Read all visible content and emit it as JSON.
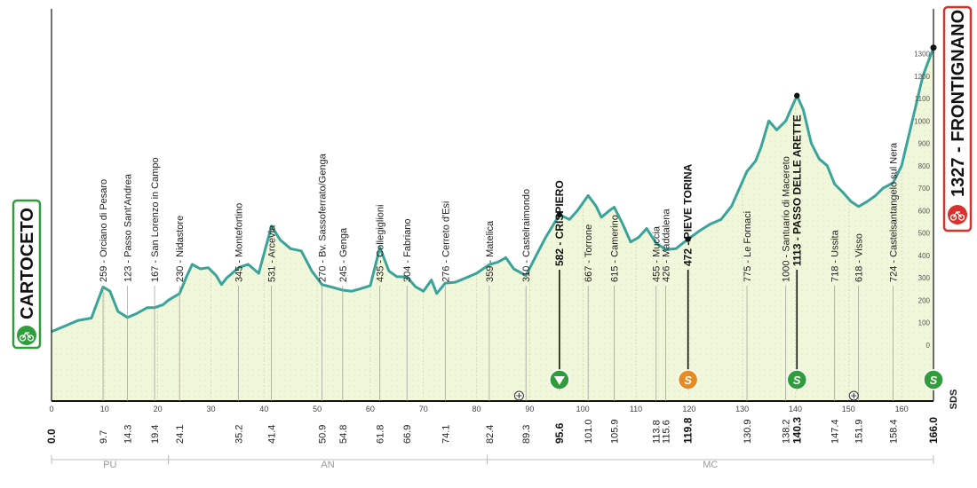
{
  "chart_data": {
    "type": "area",
    "title": "",
    "xlabel": "",
    "ylabel": "",
    "xlim": [
      0,
      166
    ],
    "ylim": [
      -250,
      1500
    ],
    "colors": {
      "line": "#3aa39a",
      "fill": "#f1f7db",
      "start_box": "#2e9d3a",
      "finish_box": "#d9302c",
      "sprint_marker": "#e88a1e",
      "kom_marker": "#2e9d3a",
      "feed_marker": "#2e9d3a"
    },
    "start": {
      "name": "CARTOCETO",
      "km": 0.0
    },
    "finish": {
      "name": "1327 - FRONTIGNANO",
      "km": 166.0,
      "elevation": 1327
    },
    "profile": [
      [
        0,
        60
      ],
      [
        2,
        80
      ],
      [
        5,
        110
      ],
      [
        7.5,
        120
      ],
      [
        9.7,
        259
      ],
      [
        11,
        240
      ],
      [
        12.5,
        150
      ],
      [
        14.3,
        123
      ],
      [
        16,
        140
      ],
      [
        18,
        167
      ],
      [
        19.4,
        167
      ],
      [
        21,
        180
      ],
      [
        22,
        200
      ],
      [
        24.1,
        230
      ],
      [
        25.5,
        310
      ],
      [
        26.5,
        360
      ],
      [
        28,
        340
      ],
      [
        29.5,
        345
      ],
      [
        31,
        310
      ],
      [
        32,
        270
      ],
      [
        33,
        300
      ],
      [
        35.2,
        345
      ],
      [
        37,
        360
      ],
      [
        39,
        320
      ],
      [
        41.4,
        531
      ],
      [
        43,
        470
      ],
      [
        45,
        430
      ],
      [
        47,
        420
      ],
      [
        49,
        330
      ],
      [
        50.9,
        270
      ],
      [
        52.5,
        260
      ],
      [
        54.8,
        245
      ],
      [
        56.5,
        240
      ],
      [
        58,
        250
      ],
      [
        60,
        265
      ],
      [
        61.8,
        435
      ],
      [
        63.5,
        330
      ],
      [
        65,
        305
      ],
      [
        66.9,
        304
      ],
      [
        68.5,
        260
      ],
      [
        70,
        240
      ],
      [
        71.5,
        290
      ],
      [
        72.5,
        230
      ],
      [
        74.1,
        276
      ],
      [
        76,
        280
      ],
      [
        78,
        300
      ],
      [
        80,
        320
      ],
      [
        82.4,
        359
      ],
      [
        84,
        370
      ],
      [
        85.5,
        390
      ],
      [
        87,
        340
      ],
      [
        89.3,
        310
      ],
      [
        91,
        390
      ],
      [
        93,
        480
      ],
      [
        95.6,
        582
      ],
      [
        97.5,
        560
      ],
      [
        99,
        600
      ],
      [
        101,
        667
      ],
      [
        102.5,
        620
      ],
      [
        103.5,
        570
      ],
      [
        105,
        600
      ],
      [
        105.9,
        615
      ],
      [
        107.5,
        540
      ],
      [
        109,
        460
      ],
      [
        110.5,
        480
      ],
      [
        112,
        520
      ],
      [
        113.8,
        455
      ],
      [
        115.6,
        426
      ],
      [
        117.5,
        430
      ],
      [
        119.8,
        472
      ],
      [
        122,
        510
      ],
      [
        124,
        540
      ],
      [
        126,
        560
      ],
      [
        128,
        620
      ],
      [
        130.9,
        775
      ],
      [
        132.5,
        820
      ],
      [
        133.5,
        880
      ],
      [
        135,
        1000
      ],
      [
        136.5,
        960
      ],
      [
        138.2,
        1000
      ],
      [
        140.3,
        1113
      ],
      [
        141.5,
        1050
      ],
      [
        143,
        900
      ],
      [
        144.5,
        830
      ],
      [
        146,
        800
      ],
      [
        147.4,
        718
      ],
      [
        149,
        680
      ],
      [
        150.5,
        640
      ],
      [
        151.9,
        618
      ],
      [
        153.5,
        640
      ],
      [
        155,
        665
      ],
      [
        156.5,
        700
      ],
      [
        158.4,
        724
      ],
      [
        160,
        800
      ],
      [
        162,
        1000
      ],
      [
        164,
        1200
      ],
      [
        166,
        1327
      ]
    ],
    "x_ticks": [
      0,
      10,
      20,
      30,
      40,
      50,
      60,
      70,
      80,
      90,
      100,
      110,
      120,
      130,
      140,
      150,
      160
    ],
    "elevation_ticks": [
      "0",
      "100",
      "200",
      "300",
      "400",
      "500",
      "600",
      "700",
      "800",
      "900",
      "1000",
      "1100",
      "1200",
      "1300"
    ],
    "locations": [
      {
        "km": 9.7,
        "km_label": "9.7",
        "elev": 259,
        "label": "259 - Orciano di Pesaro",
        "bold": false,
        "marker": ""
      },
      {
        "km": 14.3,
        "km_label": "14.3",
        "elev": 123,
        "label": "123 - Passo Sant'Andrea",
        "bold": false,
        "marker": ""
      },
      {
        "km": 19.4,
        "km_label": "19.4",
        "elev": 167,
        "label": "167 - San Lorenzo in Campo",
        "bold": false,
        "marker": ""
      },
      {
        "km": 24.1,
        "km_label": "24.1",
        "elev": 230,
        "label": "230 - Nidastore",
        "bold": false,
        "marker": ""
      },
      {
        "km": 35.2,
        "km_label": "35.2",
        "elev": 345,
        "label": "345 - Montefortino",
        "bold": false,
        "marker": ""
      },
      {
        "km": 41.4,
        "km_label": "41.4",
        "elev": 531,
        "label": "531 - Arcevia",
        "bold": false,
        "marker": ""
      },
      {
        "km": 50.9,
        "km_label": "50.9",
        "elev": 270,
        "label": "270 - Bv. Sassoferrato/Genga",
        "bold": false,
        "marker": ""
      },
      {
        "km": 54.8,
        "km_label": "54.8",
        "elev": 245,
        "label": "245 - Genga",
        "bold": false,
        "marker": ""
      },
      {
        "km": 61.8,
        "km_label": "61.8",
        "elev": 435,
        "label": "435 - Collegiglioni",
        "bold": false,
        "marker": ""
      },
      {
        "km": 66.9,
        "km_label": "66.9",
        "elev": 304,
        "label": "304 - Fabriano",
        "bold": false,
        "marker": ""
      },
      {
        "km": 74.1,
        "km_label": "74.1",
        "elev": 276,
        "label": "276 - Cerreto d'Esi",
        "bold": false,
        "marker": ""
      },
      {
        "km": 82.4,
        "km_label": "82.4",
        "elev": 359,
        "label": "359 - Matelica",
        "bold": false,
        "marker": ""
      },
      {
        "km": 89.3,
        "km_label": "89.3",
        "elev": 310,
        "label": "310 - Castelraimondo",
        "bold": false,
        "marker": ""
      },
      {
        "km": 95.6,
        "km_label": "95.6",
        "elev": 582,
        "label": "582 - CRISPIERO",
        "bold": true,
        "marker": "feed"
      },
      {
        "km": 101.0,
        "km_label": "101.0",
        "elev": 667,
        "label": "667 - Torrone",
        "bold": false,
        "marker": ""
      },
      {
        "km": 105.9,
        "km_label": "105.9",
        "elev": 615,
        "label": "615 - Camerino",
        "bold": false,
        "marker": ""
      },
      {
        "km": 113.8,
        "km_label": "113.8",
        "elev": 455,
        "label": "455 - Muccia",
        "bold": false,
        "marker": ""
      },
      {
        "km": 115.6,
        "km_label": "115.6",
        "elev": 426,
        "label": "426 - Maddalena",
        "bold": false,
        "marker": ""
      },
      {
        "km": 119.8,
        "km_label": "119.8",
        "elev": 472,
        "label": "472 - PIEVE TORINA",
        "bold": true,
        "marker": "sprint"
      },
      {
        "km": 130.9,
        "km_label": "130.9",
        "elev": 775,
        "label": "775 - Le Fornaci",
        "bold": false,
        "marker": ""
      },
      {
        "km": 138.2,
        "km_label": "138.2",
        "elev": 1000,
        "label": "1000 - Santuario di Macereto",
        "bold": false,
        "marker": ""
      },
      {
        "km": 140.3,
        "km_label": "140.3",
        "elev": 1113,
        "label": "1113 - PASSO DELLE ARETTE",
        "bold": true,
        "marker": "kom"
      },
      {
        "km": 147.4,
        "km_label": "147.4",
        "elev": 718,
        "label": "718 - Ussita",
        "bold": false,
        "marker": ""
      },
      {
        "km": 151.9,
        "km_label": "151.9",
        "elev": 618,
        "label": "618 - Visso",
        "bold": false,
        "marker": ""
      },
      {
        "km": 158.4,
        "km_label": "158.4",
        "elev": 724,
        "label": "724 - Castelsantangelo sul Nera",
        "bold": false,
        "marker": ""
      }
    ],
    "finish_marker_letter": "S",
    "km_labels_edge": {
      "start": "0.0",
      "finish": "166.0"
    },
    "regions": [
      {
        "name": "PU",
        "from": 0,
        "to": 22
      },
      {
        "name": "AN",
        "from": 22,
        "to": 82
      },
      {
        "name": "MC",
        "from": 82,
        "to": 166
      }
    ],
    "special_icons": [
      {
        "km": 88,
        "type": "railway-crossing-icon"
      },
      {
        "km": 151,
        "type": "tunnel-icon"
      }
    ],
    "logo": "SDS"
  }
}
